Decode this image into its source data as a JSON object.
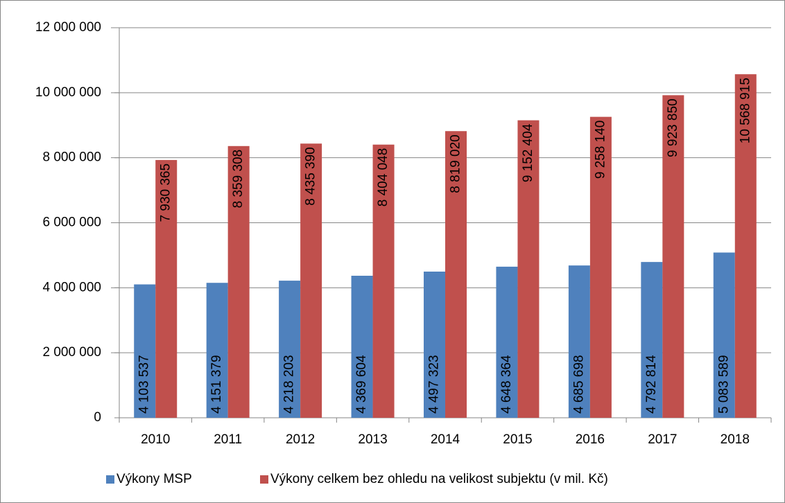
{
  "chart_data": {
    "type": "bar",
    "categories": [
      "2010",
      "2011",
      "2012",
      "2013",
      "2014",
      "2015",
      "2016",
      "2017",
      "2018"
    ],
    "series": [
      {
        "name": "Výkony MSP",
        "color": "#4f81bd",
        "values": [
          4103537,
          4151379,
          4218203,
          4369604,
          4497323,
          4648364,
          4685698,
          4792814,
          5083589
        ],
        "value_labels": [
          "4 103 537",
          "4 151 379",
          "4 218 203",
          "4 369 604",
          "4 497 323",
          "4 648 364",
          "4 685 698",
          "4 792 814",
          "5 083 589"
        ]
      },
      {
        "name": "Výkony celkem bez ohledu na velikost subjektu (v mil. Kč)",
        "color": "#c0504d",
        "values": [
          7930365,
          8359308,
          8435390,
          8404048,
          8819020,
          9152404,
          9258140,
          9923850,
          10568915
        ],
        "value_labels": [
          "7 930 365",
          "8 359 308",
          "8 435 390",
          "8 404 048",
          "8 819 020",
          "9 152 404",
          "9 258 140",
          "9 923 850",
          "10 568 915"
        ]
      }
    ],
    "ylim": [
      0,
      12000000
    ],
    "yticks": [
      0,
      {
        "value": 2000000,
        "label": "2 000 000"
      },
      {
        "value": 4000000,
        "label": "4 000 000"
      },
      {
        "value": 6000000,
        "label": "6 000 000"
      },
      {
        "value": 8000000,
        "label": "8 000 000"
      },
      {
        "value": 10000000,
        "label": "10 000 000"
      },
      {
        "value": 12000000,
        "label": "12 000 000"
      }
    ],
    "grid": true,
    "legend": "bottom"
  }
}
